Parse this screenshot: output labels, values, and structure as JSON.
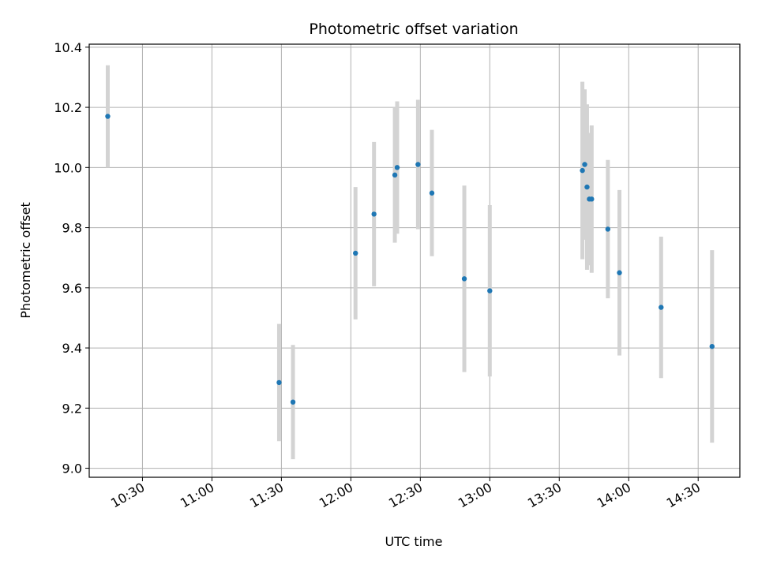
{
  "chart_data": {
    "type": "scatter",
    "title": "Photometric offset variation",
    "xlabel": "UTC time",
    "ylabel": "Photometric offset",
    "x_axis": "time",
    "xlim": [
      "10:07",
      "14:48"
    ],
    "ylim": [
      8.97,
      10.41
    ],
    "x_ticks": [
      "10:30",
      "11:00",
      "11:30",
      "12:00",
      "12:30",
      "13:00",
      "13:30",
      "14:00",
      "14:30"
    ],
    "y_ticks": [
      9.0,
      9.2,
      9.4,
      9.6,
      9.8,
      10.0,
      10.2,
      10.4
    ],
    "y_tick_labels": [
      "9.0",
      "9.2",
      "9.4",
      "9.6",
      "9.8",
      "10.0",
      "10.2",
      "10.4"
    ],
    "grid": true,
    "error_bars": true,
    "points": [
      {
        "x": "10:15",
        "y": 10.17,
        "err": 0.17
      },
      {
        "x": "11:29",
        "y": 9.285,
        "err": 0.195
      },
      {
        "x": "11:35",
        "y": 9.22,
        "err": 0.19
      },
      {
        "x": "12:02",
        "y": 9.715,
        "err": 0.22
      },
      {
        "x": "12:10",
        "y": 9.845,
        "err": 0.24
      },
      {
        "x": "12:19",
        "y": 9.975,
        "err": 0.225
      },
      {
        "x": "12:20",
        "y": 10.0,
        "err": 0.22
      },
      {
        "x": "12:29",
        "y": 10.01,
        "err": 0.215
      },
      {
        "x": "12:35",
        "y": 9.915,
        "err": 0.21
      },
      {
        "x": "12:49",
        "y": 9.63,
        "err": 0.31
      },
      {
        "x": "13:00",
        "y": 9.59,
        "err": 0.285
      },
      {
        "x": "13:40",
        "y": 9.99,
        "err": 0.295
      },
      {
        "x": "13:41",
        "y": 10.01,
        "err": 0.25
      },
      {
        "x": "13:42",
        "y": 9.935,
        "err": 0.275
      },
      {
        "x": "13:43",
        "y": 9.895,
        "err": 0.22
      },
      {
        "x": "13:44",
        "y": 9.895,
        "err": 0.245
      },
      {
        "x": "13:51",
        "y": 9.795,
        "err": 0.23
      },
      {
        "x": "13:56",
        "y": 9.65,
        "err": 0.275
      },
      {
        "x": "14:14",
        "y": 9.535,
        "err": 0.235
      },
      {
        "x": "14:36",
        "y": 9.405,
        "err": 0.32
      }
    ],
    "colors": {
      "marker": "#1f77b4",
      "error_bar": "#d3d3d3",
      "grid": "#b0b0b0",
      "axes": "#000000"
    }
  }
}
